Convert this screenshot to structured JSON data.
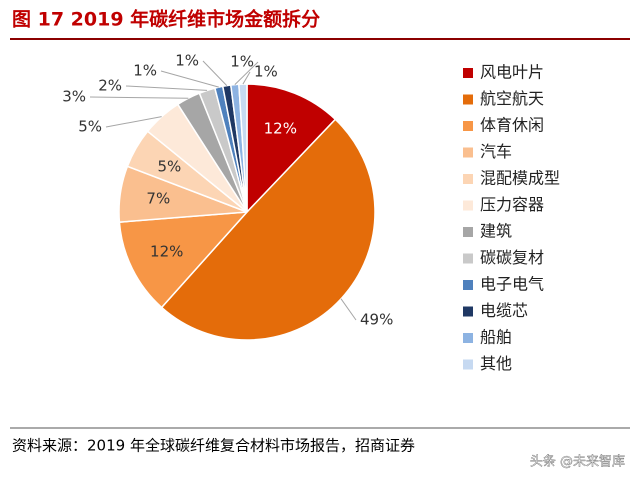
{
  "chart_data": {
    "type": "pie",
    "title": "图 17 2019 年碳纤维市场金额拆分",
    "categories": [
      "风电叶片",
      "航空航天",
      "体育休闲",
      "汽车",
      "混配模成型",
      "压力容器",
      "建筑",
      "碳碳复材",
      "电子电气",
      "电缆芯",
      "船舶",
      "其他"
    ],
    "values": [
      12,
      49,
      12,
      7,
      5,
      5,
      3,
      2,
      1,
      1,
      1,
      1
    ],
    "value_labels": [
      "12%",
      "49%",
      "12%",
      "7%",
      "5%",
      "5%",
      "3%",
      "2%",
      "1%",
      "1%",
      "1%",
      "1%"
    ],
    "colors": [
      "#c00000",
      "#e46c0a",
      "#f79646",
      "#fabf8f",
      "#fcd5b4",
      "#fde9d9",
      "#a6a6a6",
      "#c9c9c9",
      "#4f81bd",
      "#1f3864",
      "#8db3e2",
      "#c6d9f1"
    ],
    "source": "资料来源：2019 年全球碳纤维复合材料市场报告，招商证券"
  },
  "watermark": "头条 @未来智库"
}
